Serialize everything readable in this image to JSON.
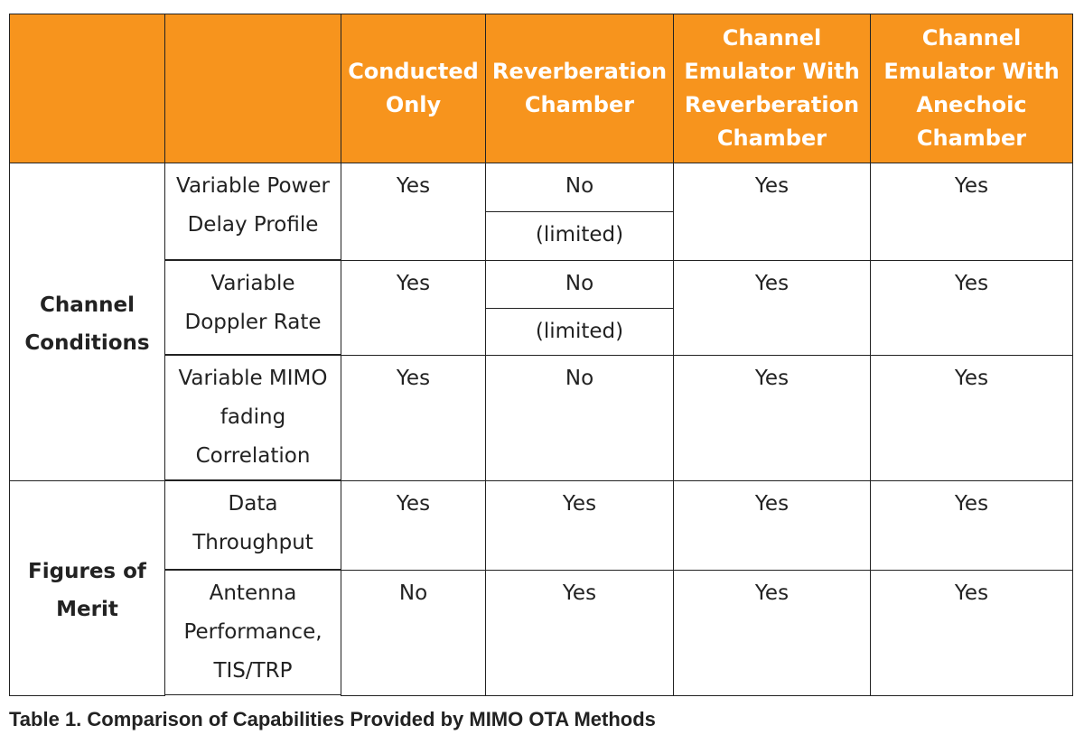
{
  "header": {
    "columns": [
      "Conducted Only",
      "Reverberation Chamber",
      "Channel Emulator With Reverberation Chamber",
      "Channel Emulator With Anechoic Chamber"
    ]
  },
  "groups": [
    {
      "label": "Channel Conditions",
      "rows": [
        {
          "label": "Variable Power Delay Profile",
          "cells": [
            "Yes",
            [
              "No",
              "(limited)"
            ],
            "Yes",
            "Yes"
          ]
        },
        {
          "label": "Variable Doppler Rate",
          "cells": [
            "Yes",
            [
              "No",
              "(limited)"
            ],
            "Yes",
            "Yes"
          ]
        },
        {
          "label": "Variable MIMO fading Correlation",
          "cells": [
            "Yes",
            "No",
            "Yes",
            "Yes"
          ]
        }
      ]
    },
    {
      "label": "Figures of Merit",
      "rows": [
        {
          "label": "Data Throughput",
          "cells": [
            "Yes",
            "Yes",
            "Yes",
            "Yes"
          ]
        },
        {
          "label": "Antenna Performance, TIS/TRP",
          "cells": [
            "No",
            "Yes",
            "Yes",
            "Yes"
          ]
        }
      ]
    }
  ],
  "caption": "Table 1. Comparison of Capabilities Provided by MIMO OTA Methods"
}
